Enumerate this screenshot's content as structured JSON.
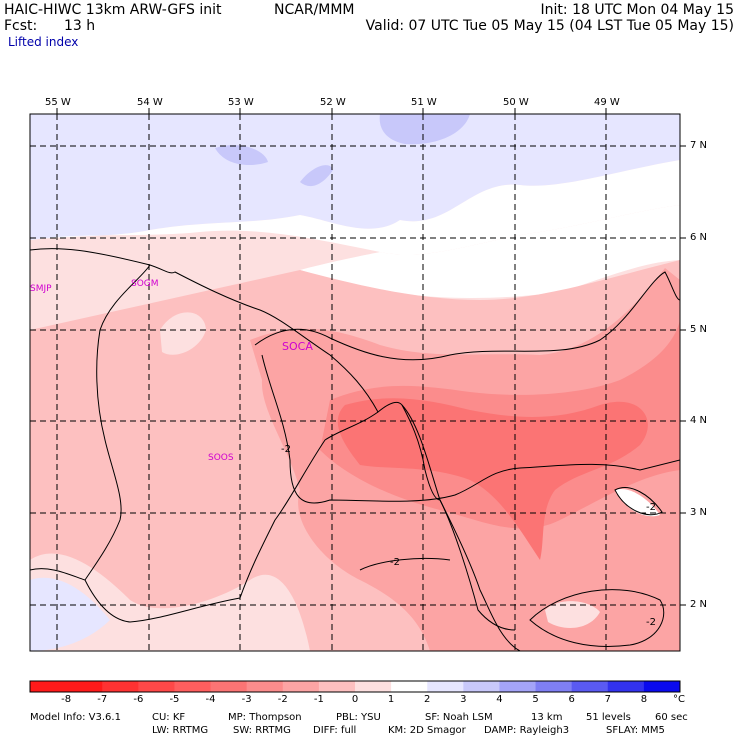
{
  "header": {
    "title": "HAIC-HIWC 13km ARW-GFS init",
    "org": "NCAR/MMM",
    "fcst_label": "Fcst:",
    "fcst_value": "13 h",
    "init": "Init: 18 UTC Mon 04 May 15",
    "valid": "Valid: 07 UTC Tue 05 May 15 (04 LST Tue 05 May 15)",
    "field": "Lifted index"
  },
  "longitudes": [
    "55 W",
    "54 W",
    "53 W",
    "52 W",
    "51 W",
    "50 W",
    "49 W"
  ],
  "latitudes": [
    "7 N",
    "6 N",
    "5 N",
    "4 N",
    "3 N",
    "2 N"
  ],
  "stations": [
    "SMJP",
    "SOGM",
    "SOCA",
    "SOOS"
  ],
  "contour_labels": [
    "-2",
    "-2",
    "-2",
    "-2"
  ],
  "colorbar": {
    "labels": [
      "-8",
      "-7",
      "-6",
      "-5",
      "-4",
      "-3",
      "-2",
      "-1",
      "0",
      "1",
      "2",
      "3",
      "4",
      "5",
      "6",
      "7",
      "8"
    ],
    "unit": "°C",
    "colors": [
      "#ff1a1a",
      "#ff3232",
      "#ff4848",
      "#ff5e5e",
      "#fb7474",
      "#fb8c8c",
      "#fca4a4",
      "#fdc0c0",
      "#fde0e0",
      "#ffffff",
      "#e6e6ff",
      "#c8c8fa",
      "#a4a4f8",
      "#7f7ff4",
      "#5a5af2",
      "#3232ee",
      "#0a0aee"
    ]
  },
  "footer": {
    "line1": [
      "Model Info: V3.6.1",
      "CU: KF",
      "MP: Thompson",
      "PBL: YSU",
      "SF: Noah LSM",
      "13 km",
      "51 levels",
      "60 sec"
    ],
    "line2": [
      "LW: RRTMG",
      "SW: RRTMG",
      "DIFF: full",
      "KM: 2D Smagor",
      "DAMP: Rayleigh3",
      "SFLAY: MM5"
    ]
  }
}
